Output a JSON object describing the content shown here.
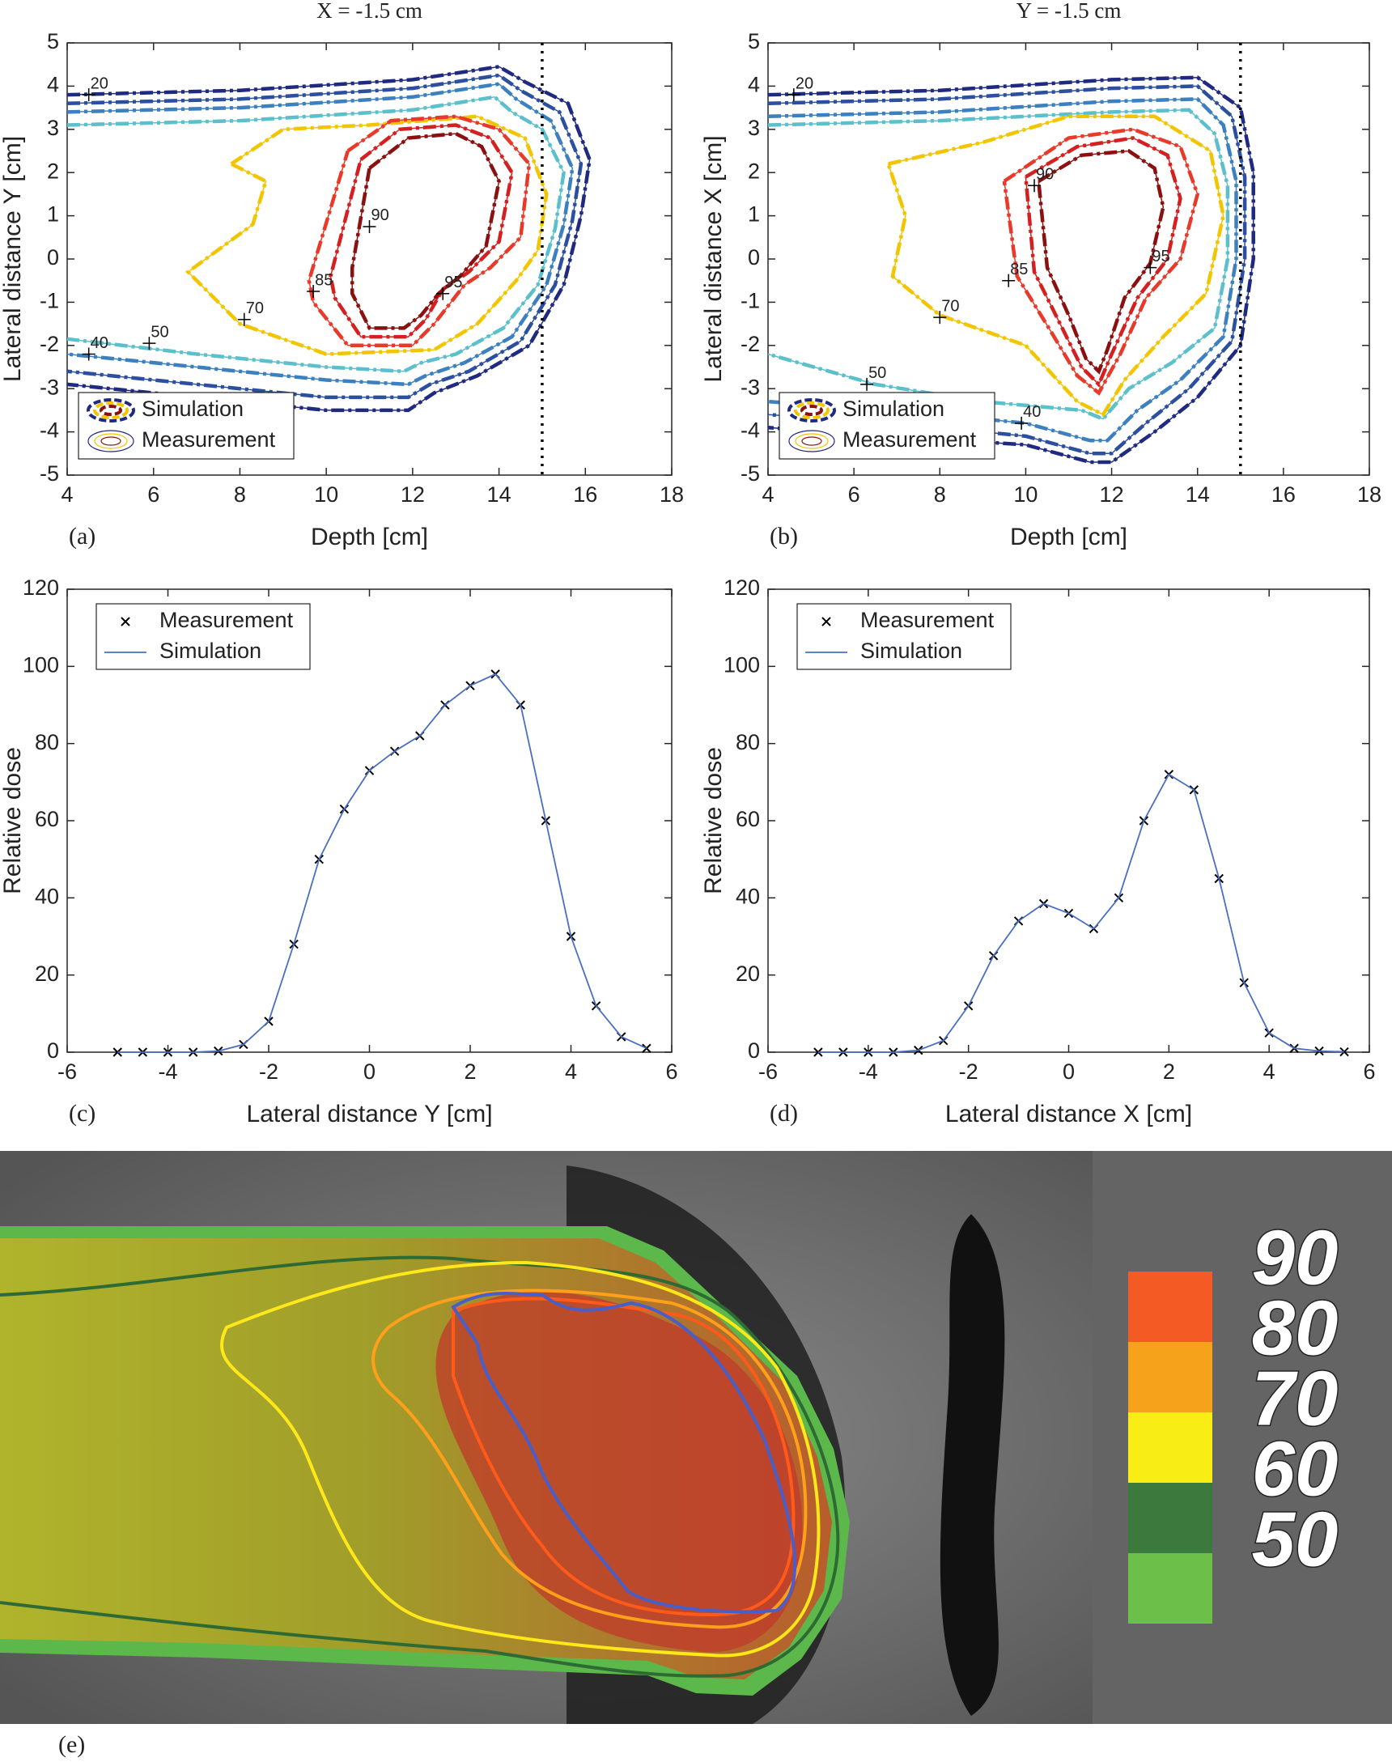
{
  "chart_data": [
    {
      "type": "contour",
      "title": "X = -1.5 cm",
      "label": "(a)",
      "xlabel": "Depth [cm]",
      "ylabel": "Lateral distance Y [cm]",
      "xlim": [
        4,
        18
      ],
      "xticks": [
        4,
        6,
        8,
        10,
        12,
        14,
        16,
        18
      ],
      "ylim": [
        -5,
        5
      ],
      "yticks": [
        -5,
        -4,
        -3,
        -2,
        -1,
        0,
        1,
        2,
        3,
        4,
        5
      ],
      "vline": 15,
      "legend": [
        "Simulation",
        "Measurement"
      ],
      "contours": [
        {
          "color": "#1f2a80",
          "x": [
            4,
            8,
            12,
            14,
            14.6,
            15.6,
            16.1,
            15.9,
            15.5,
            14.7,
            13.5,
            12.5,
            11.9,
            10,
            7,
            4
          ],
          "y": [
            3.8,
            3.9,
            4.15,
            4.45,
            4.1,
            3.6,
            2.3,
            1,
            -0.6,
            -2,
            -2.7,
            -3.1,
            -3.5,
            -3.5,
            -3.2,
            -2.9
          ]
        },
        {
          "color": "#2d4fa0",
          "x": [
            4,
            8,
            12,
            14,
            14.5,
            15.4,
            15.9,
            15.7,
            15.3,
            14.5,
            13.3,
            12.4,
            11.9,
            10,
            7,
            4
          ],
          "y": [
            3.6,
            3.7,
            3.95,
            4.25,
            3.9,
            3.4,
            2.2,
            0.9,
            -0.6,
            -1.9,
            -2.6,
            -2.9,
            -3.2,
            -3.2,
            -2.9,
            -2.6
          ]
        },
        {
          "color": "#3d80c0",
          "x": [
            4,
            8,
            12,
            14,
            14.4,
            15.2,
            15.7,
            15.5,
            15.1,
            14.3,
            13.2,
            12.3,
            11.9,
            10,
            7,
            4
          ],
          "y": [
            3.4,
            3.5,
            3.75,
            4.05,
            3.7,
            3.2,
            2.1,
            0.8,
            -0.6,
            -1.8,
            -2.4,
            -2.7,
            -2.9,
            -2.8,
            -2.5,
            -2.2
          ]
        },
        {
          "color": "#5cc0cc",
          "x": [
            4,
            8,
            12,
            13.9,
            14.3,
            15,
            15.5,
            15.3,
            14.9,
            14.1,
            13,
            12.2,
            11.8,
            10,
            7,
            4
          ],
          "y": [
            3.1,
            3.2,
            3.45,
            3.75,
            3.4,
            3,
            2,
            0.7,
            -0.6,
            -1.6,
            -2.2,
            -2.4,
            -2.6,
            -2.5,
            -2.2,
            -1.85
          ]
        },
        {
          "color": "#f2c500",
          "x": [
            7.8,
            9,
            11,
            13.5,
            14.6,
            15.1,
            14.9,
            14.4,
            13.5,
            12.5,
            10,
            8,
            6.8,
            8.3,
            8.6,
            7.8
          ],
          "y": [
            2.2,
            3,
            3.1,
            3.3,
            2.8,
            1.5,
            0.2,
            -0.5,
            -1.5,
            -2.1,
            -2.2,
            -1.5,
            -0.3,
            0.8,
            1.8,
            2.2
          ]
        },
        {
          "color": "#e83a2a",
          "x": [
            10.5,
            11.5,
            13,
            14,
            14.7,
            14.5,
            13.8,
            13.2,
            12.5,
            12,
            10.5,
            9.7,
            9.6,
            10.5
          ],
          "y": [
            2.5,
            3.2,
            3.3,
            3,
            2.2,
            0.5,
            -0.2,
            -0.6,
            -1.5,
            -2,
            -2,
            -1,
            -0.5,
            2.5
          ]
        },
        {
          "color": "#d42020",
          "x": [
            10.8,
            11.7,
            13,
            13.8,
            14.3,
            14,
            13.3,
            12.7,
            12.3,
            11.9,
            10.8,
            10.2,
            10.1,
            10.8
          ],
          "y": [
            2.3,
            3,
            3.1,
            2.8,
            2,
            0.4,
            -0.3,
            -0.7,
            -1.4,
            -1.8,
            -1.8,
            -0.9,
            -0.4,
            2.3
          ]
        },
        {
          "color": "#8b1010",
          "x": [
            11,
            11.9,
            13,
            13.6,
            14,
            13.7,
            13.1,
            12.6,
            12.2,
            11.8,
            11,
            10.6,
            10.6,
            11
          ],
          "y": [
            2.1,
            2.8,
            2.9,
            2.6,
            1.8,
            0.3,
            -0.4,
            -0.8,
            -1.3,
            -1.6,
            -1.6,
            -0.8,
            -0.2,
            2.1
          ]
        }
      ],
      "labels": [
        {
          "level": 20,
          "x": 4.5,
          "y": 3.8
        },
        {
          "level": 40,
          "x": 4.5,
          "y": -2.2
        },
        {
          "level": 50,
          "x": 5.9,
          "y": -1.95
        },
        {
          "level": 70,
          "x": 8.1,
          "y": -1.4
        },
        {
          "level": 85,
          "x": 9.7,
          "y": -0.75
        },
        {
          "level": 90,
          "x": 11,
          "y": 0.75
        },
        {
          "level": 95,
          "x": 12.7,
          "y": -0.8
        }
      ]
    },
    {
      "type": "contour",
      "title": "Y = -1.5 cm",
      "label": "(b)",
      "xlabel": "Depth [cm]",
      "ylabel": "Lateral distance X [cm]",
      "xlim": [
        4,
        18
      ],
      "xticks": [
        4,
        6,
        8,
        10,
        12,
        14,
        16,
        18
      ],
      "ylim": [
        -5,
        5
      ],
      "yticks": [
        -5,
        -4,
        -3,
        -2,
        -1,
        0,
        1,
        2,
        3,
        4,
        5
      ],
      "vline": 15,
      "legend": [
        "Simulation",
        "Measurement"
      ],
      "contours": [
        {
          "color": "#1f2a80",
          "x": [
            4,
            8,
            12,
            14,
            15,
            15.3,
            15.3,
            15,
            14,
            13,
            12,
            11.5,
            10,
            7,
            4
          ],
          "y": [
            3.8,
            3.9,
            4.15,
            4.2,
            3.5,
            2,
            0,
            -2,
            -3.2,
            -4,
            -4.7,
            -4.7,
            -4.3,
            -4.1,
            -3.9
          ]
        },
        {
          "color": "#2d4fa0",
          "x": [
            4,
            8,
            12,
            14,
            14.8,
            15.1,
            15.1,
            14.8,
            13.8,
            12.8,
            12,
            11.5,
            10,
            7,
            4
          ],
          "y": [
            3.6,
            3.7,
            3.95,
            4,
            3.3,
            1.9,
            0,
            -1.9,
            -3,
            -3.8,
            -4.5,
            -4.5,
            -4.1,
            -3.8,
            -3.6
          ]
        },
        {
          "color": "#3d80c0",
          "x": [
            4,
            8,
            12,
            14,
            14.6,
            14.9,
            14.9,
            14.6,
            13.6,
            12.6,
            11.9,
            11.5,
            10,
            7,
            4
          ],
          "y": [
            3.3,
            3.4,
            3.65,
            3.7,
            3.1,
            1.8,
            0,
            -1.8,
            -2.8,
            -3.5,
            -4.2,
            -4.2,
            -3.8,
            -3.5,
            -3.3
          ]
        },
        {
          "color": "#5cc0cc",
          "x": [
            4,
            8,
            12,
            13.8,
            14.4,
            14.7,
            14.7,
            14.4,
            13.4,
            12.4,
            11.8,
            11.3,
            9,
            6.5,
            4
          ],
          "y": [
            3.1,
            3.2,
            3.4,
            3.45,
            2.9,
            1.7,
            0,
            -1.6,
            -2.4,
            -3,
            -3.7,
            -3.5,
            -3.3,
            -2.9,
            -2.2
          ]
        },
        {
          "color": "#f2c500",
          "x": [
            6.8,
            9,
            11,
            13,
            14.3,
            14.6,
            14.2,
            13.2,
            12.3,
            11.8,
            11.2,
            10,
            8,
            6.9,
            7.2,
            6.8
          ],
          "y": [
            2.2,
            2.7,
            3.3,
            3.3,
            2.5,
            1,
            -0.8,
            -1.8,
            -2.8,
            -3.6,
            -3.3,
            -2,
            -1.3,
            -0.4,
            1,
            2.2
          ]
        },
        {
          "color": "#e83a2a",
          "x": [
            9.5,
            11,
            12.5,
            13.6,
            14,
            13.6,
            12.8,
            12.2,
            11.7,
            11.2,
            10.6,
            9.8,
            9.5
          ],
          "y": [
            1.8,
            2.8,
            3,
            2.6,
            1.5,
            0,
            -0.9,
            -2.2,
            -3.1,
            -2.7,
            -1.7,
            -0.4,
            1.8
          ]
        },
        {
          "color": "#d42020",
          "x": [
            10,
            11.2,
            12.5,
            13.3,
            13.6,
            13.3,
            12.6,
            12,
            11.7,
            11.3,
            10.8,
            10.2,
            10
          ],
          "y": [
            1.9,
            2.6,
            2.8,
            2.4,
            1.4,
            0,
            -0.9,
            -2.2,
            -2.9,
            -2.5,
            -1.5,
            -0.3,
            1.9
          ]
        },
        {
          "color": "#8b1010",
          "x": [
            10.3,
            11.3,
            12.4,
            13,
            13.2,
            12.9,
            12.3,
            11.9,
            11.7,
            11.4,
            11,
            10.5,
            10.3
          ],
          "y": [
            1.8,
            2.4,
            2.5,
            2.1,
            1.2,
            -0.1,
            -0.9,
            -2.1,
            -2.6,
            -2.3,
            -1.3,
            -0.2,
            1.8
          ]
        }
      ],
      "labels": [
        {
          "level": 20,
          "x": 4.6,
          "y": 3.8
        },
        {
          "level": 50,
          "x": 6.3,
          "y": -2.9
        },
        {
          "level": 40,
          "x": 9.9,
          "y": -3.8
        },
        {
          "level": 70,
          "x": 8,
          "y": -1.35
        },
        {
          "level": 85,
          "x": 9.6,
          "y": -0.5
        },
        {
          "level": 90,
          "x": 10.2,
          "y": 1.7
        },
        {
          "level": 95,
          "x": 12.9,
          "y": -0.2
        }
      ]
    },
    {
      "type": "line",
      "label": "(c)",
      "xlabel": "Lateral distance Y [cm]",
      "ylabel": "Relative dose",
      "xlim": [
        -6,
        6
      ],
      "xticks": [
        -6,
        -4,
        -2,
        0,
        2,
        4,
        6
      ],
      "ylim": [
        0,
        120
      ],
      "yticks": [
        0,
        20,
        40,
        60,
        80,
        100,
        120
      ],
      "x": [
        -5,
        -4.5,
        -4,
        -3.5,
        -3,
        -2.5,
        -2,
        -1.5,
        -1,
        -0.5,
        0,
        0.5,
        1,
        1.5,
        2,
        2.5,
        3,
        3.5,
        4,
        4.5,
        5,
        5.5
      ],
      "series": [
        {
          "name": "Measurement",
          "marker": "x",
          "color": "#000000",
          "values": [
            0,
            0,
            0,
            0,
            0.3,
            2,
            8,
            28,
            50,
            63,
            73,
            78,
            82,
            90,
            95,
            98,
            90,
            60,
            30,
            12,
            4,
            1
          ]
        },
        {
          "name": "Simulation",
          "color": "#4a6fc0",
          "values": [
            0,
            0,
            0,
            0,
            0.3,
            2,
            8,
            28,
            50,
            63,
            73,
            78,
            82,
            90,
            95,
            98,
            90,
            60,
            30,
            12,
            4,
            1
          ]
        }
      ]
    },
    {
      "type": "line",
      "label": "(d)",
      "xlabel": "Lateral distance X [cm]",
      "ylabel": "Relative dose",
      "xlim": [
        -6,
        6
      ],
      "xticks": [
        -6,
        -4,
        -2,
        0,
        2,
        4,
        6
      ],
      "ylim": [
        0,
        120
      ],
      "yticks": [
        0,
        20,
        40,
        60,
        80,
        100,
        120
      ],
      "x": [
        -5,
        -4.5,
        -4,
        -3.5,
        -3,
        -2.5,
        -2,
        -1.5,
        -1,
        -0.5,
        0,
        0.5,
        1,
        1.5,
        2,
        2.5,
        3,
        3.5,
        4,
        4.5,
        5,
        5.5
      ],
      "series": [
        {
          "name": "Measurement",
          "marker": "x",
          "color": "#000000",
          "values": [
            0,
            0,
            0,
            0,
            0.5,
            3,
            12,
            25,
            34,
            38.5,
            36,
            32,
            40,
            60,
            72,
            68,
            45,
            18,
            5,
            1,
            0.3,
            0.1
          ]
        },
        {
          "name": "Simulation",
          "color": "#4a6fc0",
          "values": [
            0,
            0,
            0,
            0,
            0.5,
            3,
            12,
            25,
            34,
            38.5,
            36,
            32,
            40,
            60,
            72,
            68,
            45,
            18,
            5,
            1,
            0.3,
            0.1
          ]
        }
      ]
    },
    {
      "type": "image",
      "label": "(e)",
      "colorbar": {
        "values": [
          90,
          80,
          70,
          60,
          50
        ],
        "colors": [
          "#f45a23",
          "#f7a21b",
          "#f8ee16",
          "#3b7a3c",
          "#6cc04a"
        ]
      }
    }
  ]
}
